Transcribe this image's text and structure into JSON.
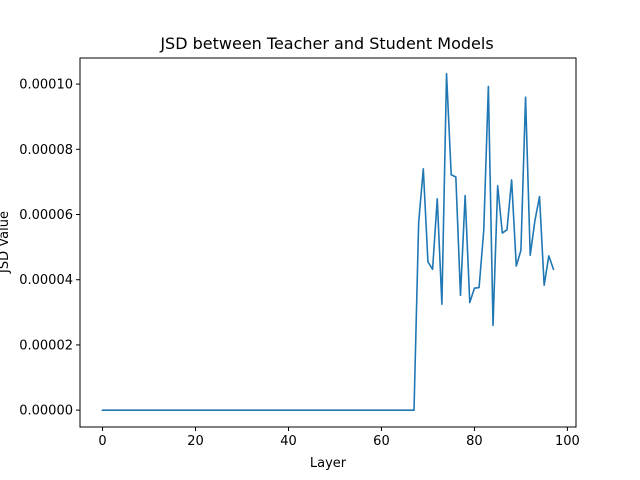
{
  "chart_data": {
    "type": "line",
    "title": "JSD between Teacher and Student Models",
    "xlabel": "Layer",
    "ylabel": "JSD Value",
    "xlim": [
      -4.85,
      101.85
    ],
    "ylim": [
      -5.17e-06,
      0.000108
    ],
    "x_ticks": [
      0,
      20,
      40,
      60,
      80,
      100
    ],
    "x_tick_labels": [
      "0",
      "20",
      "40",
      "60",
      "80",
      "100"
    ],
    "y_ticks": [
      0,
      2e-05,
      4e-05,
      6e-05,
      8e-05,
      0.0001
    ],
    "y_tick_labels": [
      "0.00000",
      "0.00002",
      "0.00004",
      "0.00006",
      "0.00008",
      "0.00010"
    ],
    "grid": false,
    "legend": "none",
    "series": [
      {
        "color": "#1f77b4",
        "x": [
          0,
          67,
          68,
          69,
          70,
          71,
          72,
          73,
          74,
          75,
          76,
          77,
          78,
          79,
          80,
          81,
          82,
          83,
          84,
          85,
          86,
          87,
          88,
          89,
          90,
          91,
          92,
          93,
          94,
          95,
          96,
          97
        ],
        "y": [
          0,
          0,
          5.75e-05,
          7.4e-05,
          4.55e-05,
          4.32e-05,
          6.48e-05,
          3.25e-05,
          0.0001032,
          7.22e-05,
          7.15e-05,
          3.52e-05,
          6.58e-05,
          3.3e-05,
          3.74e-05,
          3.76e-05,
          5.5e-05,
          9.93e-05,
          2.6e-05,
          6.88e-05,
          5.43e-05,
          5.53e-05,
          7.06e-05,
          4.42e-05,
          4.9e-05,
          9.6e-05,
          4.75e-05,
          5.8e-05,
          6.55e-05,
          3.83e-05,
          4.73e-05,
          4.32e-05
        ]
      }
    ]
  }
}
